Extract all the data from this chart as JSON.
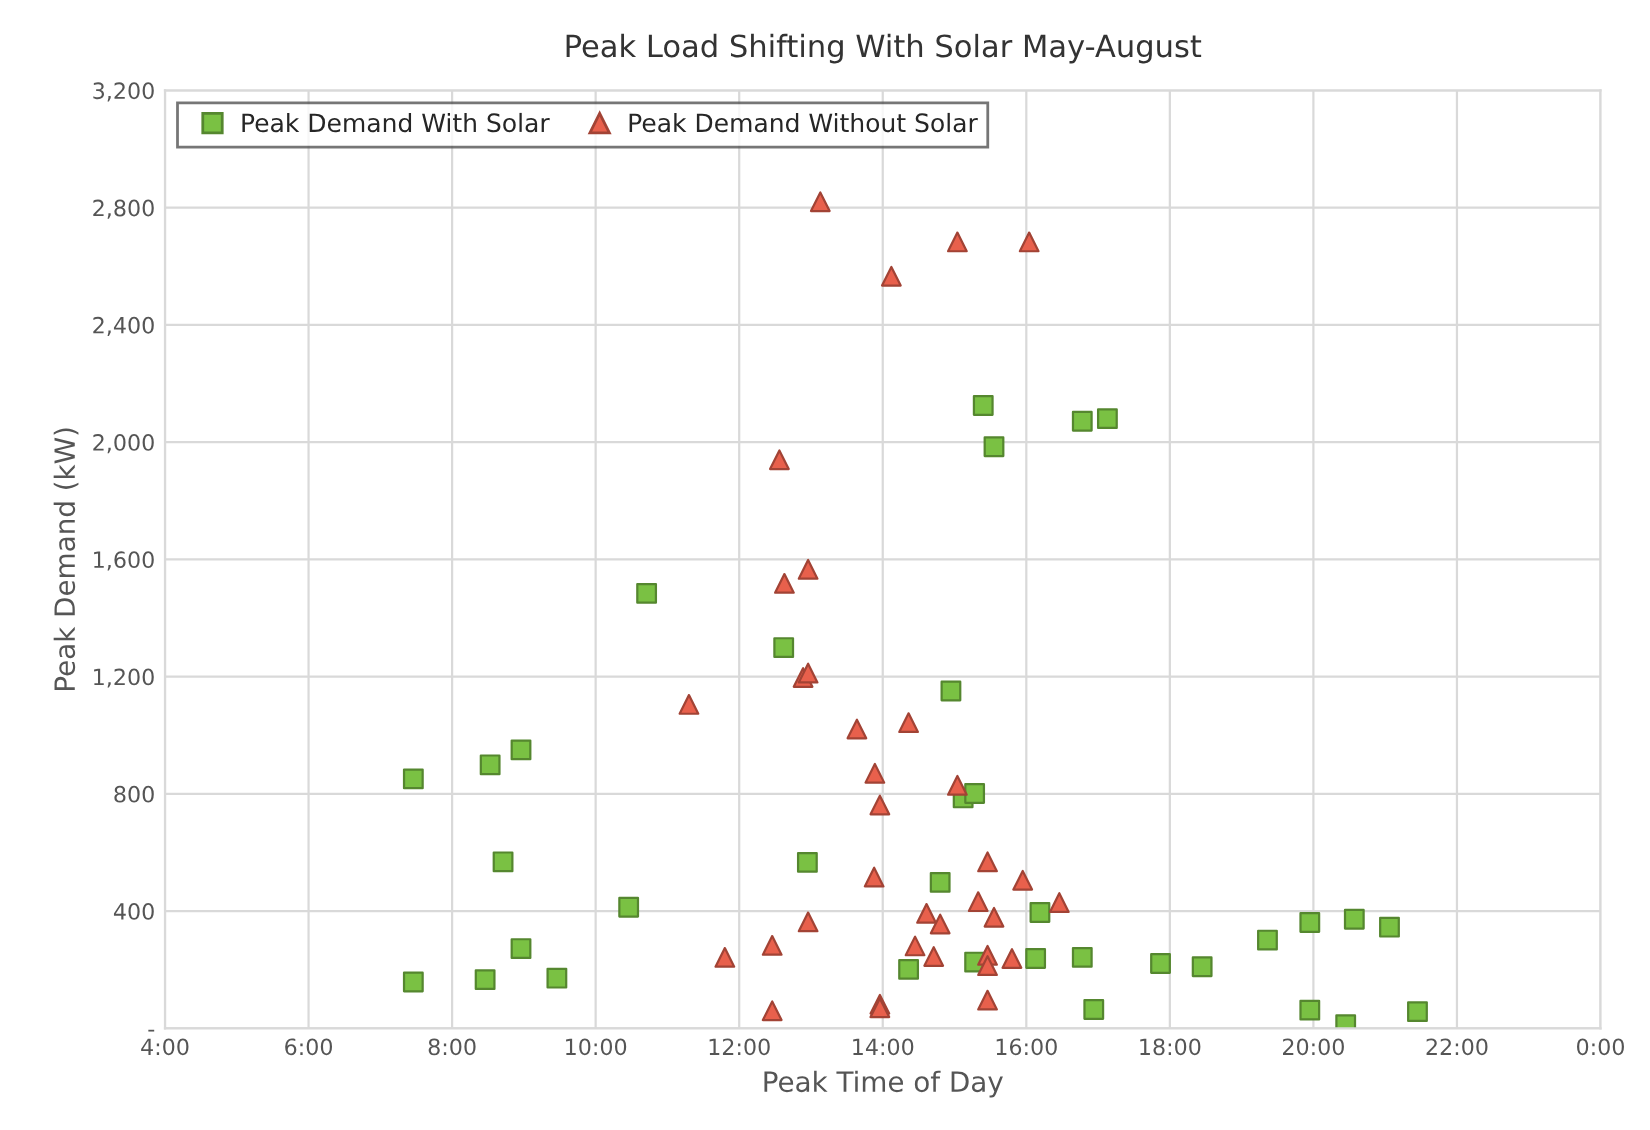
{
  "chart_data": {
    "type": "scatter",
    "title": "Peak Load Shifting With Solar May-August",
    "xlabel": "Peak Time of Day",
    "ylabel": "Peak Demand (kW)",
    "series": [
      {
        "name": "Peak Demand With Solar",
        "color": "#7ac143",
        "marker": "square",
        "x": [
          7.46,
          7.46,
          8.53,
          8.96,
          8.71,
          8.46,
          8.96,
          9.46,
          10.46,
          10.71,
          12.62,
          12.95,
          14.36,
          14.8,
          14.95,
          15.12,
          15.28,
          15.28,
          15.4,
          15.55,
          16.13,
          16.19,
          16.78,
          16.78,
          17.13,
          16.94,
          17.87,
          18.45,
          19.36,
          19.95,
          20.57,
          21.06,
          19.95,
          20.45,
          21.45
        ],
        "values": [
          851,
          158,
          899,
          950,
          568,
          166,
          272,
          171,
          413,
          1484,
          1299,
          566,
          201,
          498,
          1151,
          786,
          801,
          226,
          2125,
          1984,
          238,
          395,
          242,
          2071,
          2080,
          64,
          221,
          210,
          301,
          361,
          372,
          345,
          62,
          12,
          57
        ]
      },
      {
        "name": "Peak Demand Without Solar",
        "color": "#e8604c",
        "marker": "triangle",
        "x": [
          13.13,
          14.12,
          12.56,
          12.63,
          12.96,
          12.89,
          12.96,
          11.3,
          13.64,
          13.89,
          13.96,
          13.88,
          12.96,
          12.46,
          11.8,
          12.46,
          13.96,
          13.96,
          15.04,
          16.04,
          14.36,
          15.04,
          15.46,
          15.95,
          16.46,
          15.33,
          14.61,
          14.8,
          15.55,
          14.45,
          14.71,
          15.46,
          15.46,
          15.8,
          15.46
        ],
        "values": [
          2820,
          2566,
          1940,
          1518,
          1566,
          1197,
          1212,
          1105,
          1021,
          870,
          762,
          516,
          363,
          283,
          242,
          60,
          82,
          70,
          2683,
          2683,
          1043,
          829,
          568,
          505,
          429,
          432,
          392,
          356,
          379,
          281,
          245,
          249,
          214,
          238,
          96
        ]
      }
    ],
    "xlim": [
      4,
      24
    ],
    "xticks": [
      {
        "value": 4,
        "label": "4:00"
      },
      {
        "value": 6,
        "label": "6:00"
      },
      {
        "value": 8,
        "label": "8:00"
      },
      {
        "value": 10,
        "label": "10:00"
      },
      {
        "value": 12,
        "label": "12:00"
      },
      {
        "value": 14,
        "label": "14:00"
      },
      {
        "value": 16,
        "label": "16:00"
      },
      {
        "value": 18,
        "label": "18:00"
      },
      {
        "value": 20,
        "label": "20:00"
      },
      {
        "value": 22,
        "label": "22:00"
      },
      {
        "value": 24,
        "label": "0:00"
      }
    ],
    "ylim": [
      0,
      3200
    ],
    "yticks": [
      {
        "value": 0,
        "label": "-"
      },
      {
        "value": 400,
        "label": "400"
      },
      {
        "value": 800,
        "label": "800"
      },
      {
        "value": 1200,
        "label": "1,200"
      },
      {
        "value": 1600,
        "label": "1,600"
      },
      {
        "value": 2000,
        "label": "2,000"
      },
      {
        "value": 2400,
        "label": "2,400"
      },
      {
        "value": 2800,
        "label": "2,800"
      },
      {
        "value": 3200,
        "label": "3,200"
      }
    ],
    "grid": true,
    "legend": "top left"
  }
}
